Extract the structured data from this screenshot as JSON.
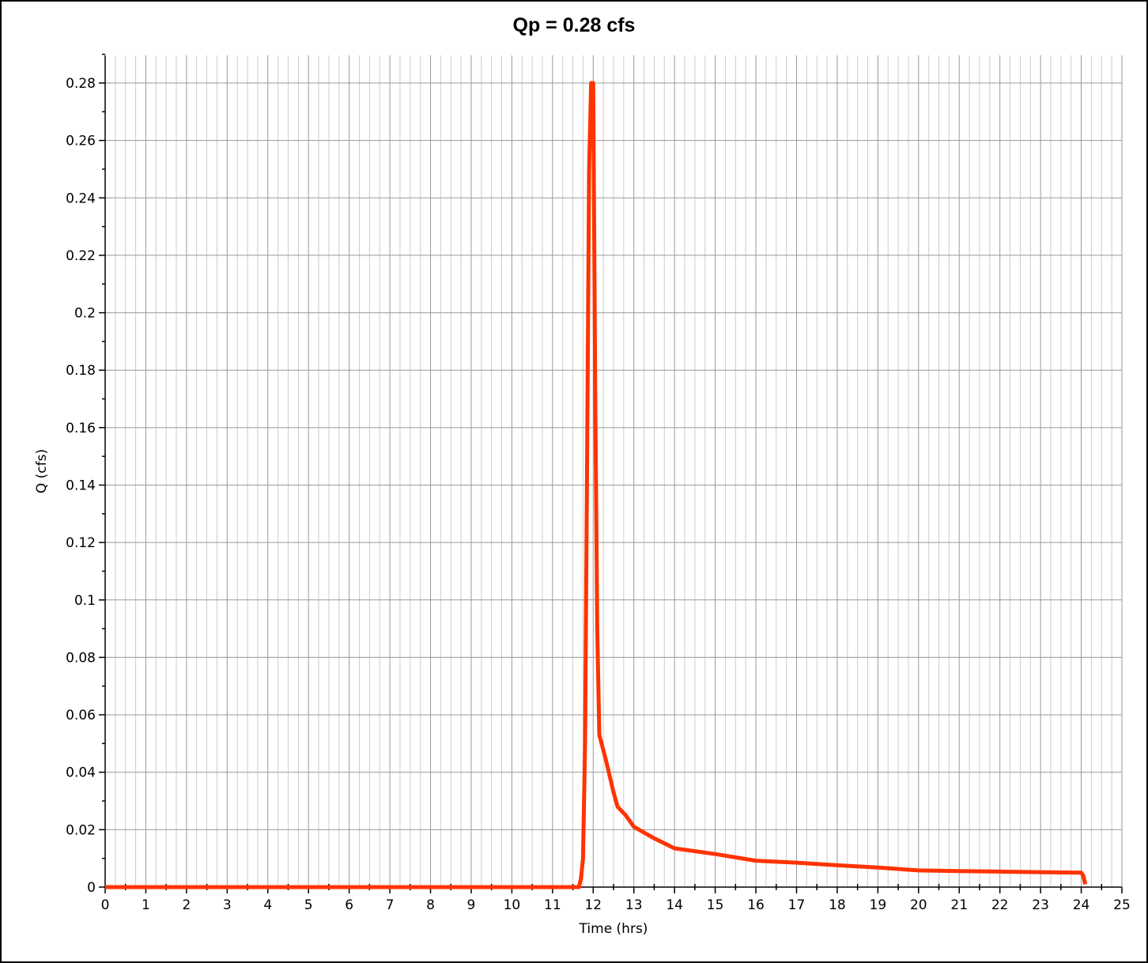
{
  "chart_data": {
    "type": "line",
    "title": "Qp = 0.28 cfs",
    "xlabel": "Time (hrs)",
    "ylabel": "Q (cfs)",
    "xlim": [
      0,
      25
    ],
    "ylim": [
      0,
      0.28
    ],
    "x_ticks": [
      "0",
      "1",
      "2",
      "3",
      "4",
      "5",
      "6",
      "7",
      "8",
      "9",
      "10",
      "11",
      "12",
      "13",
      "14",
      "15",
      "16",
      "17",
      "18",
      "19",
      "20",
      "21",
      "22",
      "23",
      "24",
      "25"
    ],
    "y_ticks": [
      "0",
      "0.02",
      "0.04",
      "0.06",
      "0.08",
      "0.1",
      "0.12",
      "0.14",
      "0.16",
      "0.18",
      "0.2",
      "0.22",
      "0.24",
      "0.26",
      "0.28"
    ],
    "grid": true,
    "series_color": "#ff3300",
    "series": [
      {
        "x": [
          0,
          11.5,
          11.65,
          11.7,
          11.75,
          11.8,
          11.85,
          11.9,
          11.95,
          12.0,
          12.05,
          12.1,
          12.15,
          12.3,
          12.5,
          12.6,
          12.8,
          13.0,
          13.5,
          14.0,
          15.0,
          16.0,
          17.0,
          18.0,
          19.0,
          20.0,
          21.0,
          22.0,
          23.0,
          24.0,
          24.05,
          24.1
        ],
        "y": [
          0,
          0,
          0.0,
          0.003,
          0.01,
          0.05,
          0.15,
          0.25,
          0.28,
          0.28,
          0.17,
          0.09,
          0.053,
          0.045,
          0.033,
          0.028,
          0.025,
          0.021,
          0.017,
          0.0135,
          0.0115,
          0.0092,
          0.0085,
          0.0076,
          0.0068,
          0.0058,
          0.0056,
          0.0054,
          0.0052,
          0.005,
          0.004,
          0.001
        ]
      }
    ]
  }
}
